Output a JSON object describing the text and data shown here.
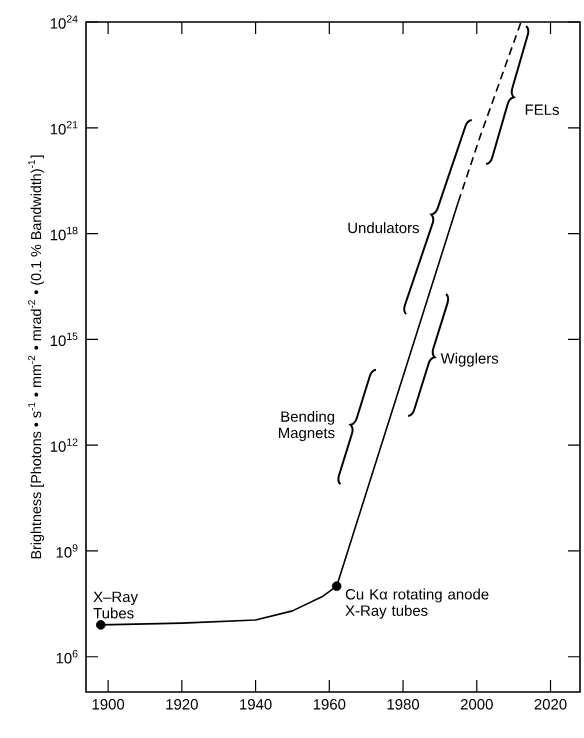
{
  "chart_data": {
    "type": "line",
    "ylabel": "Brightness [Photons • s$^{-1}$ • mm$^{-2}$ • mrad$^{-2}$ • (0.1 % Bandwidth)$^{-1}$]",
    "xlim": [
      1894,
      2028
    ],
    "xticks": [
      1900,
      1920,
      1940,
      1960,
      1980,
      2000,
      2020
    ],
    "ylim": [
      100000.0,
      1e+24
    ],
    "log": "y",
    "yticks": [
      {
        "value": 1000000.0,
        "label": "10$^{6}$"
      },
      {
        "value": 1000000000.0,
        "label": "10$^{9}$"
      },
      {
        "value": 1000000000000.0,
        "label": "10$^{12}$"
      },
      {
        "value": 1000000000000000.0,
        "label": "10$^{15}$"
      },
      {
        "value": 1e+18,
        "label": "10$^{18}$"
      },
      {
        "value": 1e+21,
        "label": "10$^{21}$"
      },
      {
        "value": 1e+24,
        "label": "10$^{24}$"
      }
    ],
    "series": [
      {
        "color": "#000000",
        "line_style": "solid",
        "marker": "none",
        "x": [
          1898,
          1920,
          1940,
          1950,
          1958,
          1962,
          1995
        ],
        "values": [
          8000000.0,
          9000000.0,
          11000000.0,
          20000000.0,
          50000000.0,
          100000000.0,
          8e+18
        ]
      },
      {
        "color": "#000000",
        "line_style": "dashed",
        "marker": "none",
        "x": [
          1995,
          2001,
          2012
        ],
        "values": [
          8e+18,
          6e+20,
          1e+24
        ]
      },
      {
        "type": "scatter",
        "color": "#000000",
        "marker": "circle",
        "x": [
          1898,
          1962
        ],
        "values": [
          8000000.0,
          100000000.0
        ]
      }
    ],
    "annotations": [
      {
        "text": "X–Ray Tubes",
        "x": 1898,
        "y": 8000000.0
      },
      {
        "text": "Cu Kα rotating anode X-Ray tubes",
        "x": 1962,
        "y": 100000000.0
      },
      "Bending Magnets",
      "Wigglers",
      "Undulators",
      "FELs"
    ]
  }
}
